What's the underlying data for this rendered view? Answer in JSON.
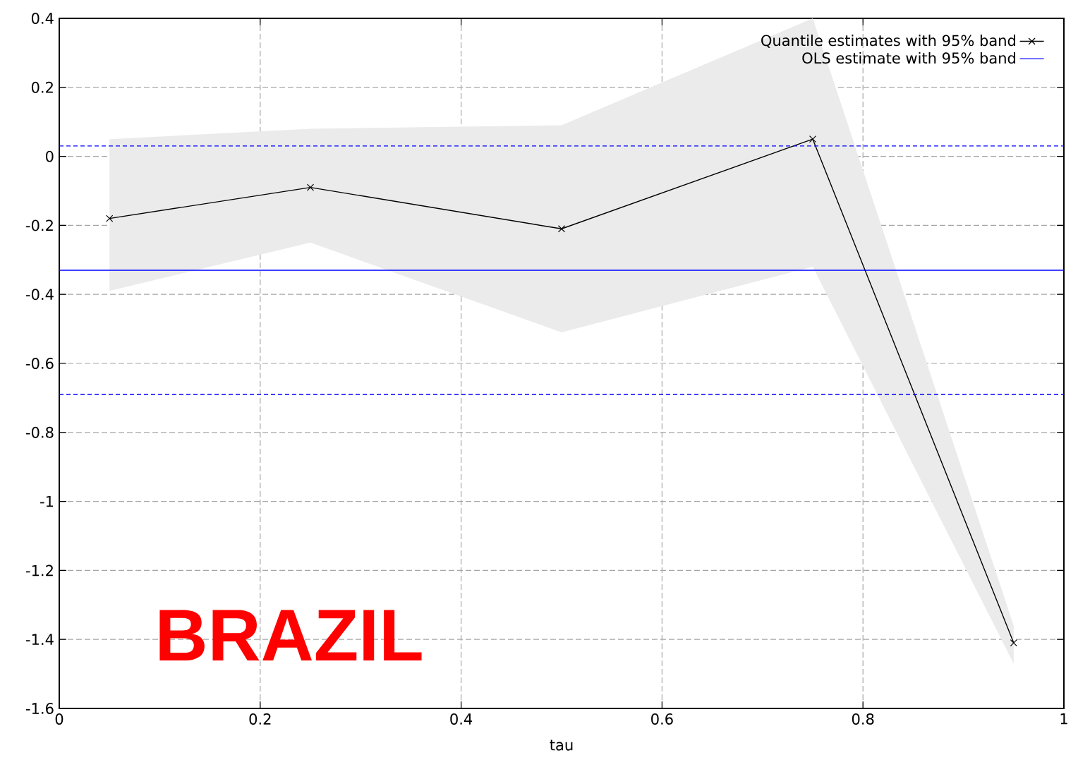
{
  "chart_data": {
    "type": "line",
    "xlabel": "tau",
    "annotations": [
      "BRAZIL"
    ],
    "series": [
      {
        "name": "Quantile estimates with 95% band",
        "color": "#000000",
        "x": [
          0.05,
          0.25,
          0.5,
          0.75,
          0.95
        ],
        "values": [
          -0.18,
          -0.09,
          -0.21,
          0.05,
          -1.41
        ],
        "lower": [
          -0.39,
          -0.25,
          -0.51,
          -0.32,
          -1.47
        ],
        "upper": [
          0.05,
          0.08,
          0.09,
          0.4,
          -1.36
        ],
        "marker": "cross"
      },
      {
        "name": "OLS estimate with 95% band",
        "color": "#0000ff",
        "x": [
          0,
          1
        ],
        "values": [
          -0.33,
          -0.33
        ],
        "marker": "none"
      }
    ],
    "ref_lines": [
      {
        "axis": "y",
        "value": 0.03,
        "color": "#0000ff",
        "line_style": "dashed"
      },
      {
        "axis": "y",
        "value": -0.69,
        "color": "#0000ff",
        "line_style": "dashed"
      }
    ],
    "xlim": [
      0,
      1
    ],
    "ylim": [
      -1.6,
      0.4
    ],
    "xticks": [
      0,
      0.2,
      0.4,
      0.6,
      0.8,
      1
    ],
    "yticks": [
      -1.6,
      -1.4,
      -1.2,
      -1,
      -0.8,
      -0.6,
      -0.4,
      -0.2,
      0,
      0.2,
      0.4
    ],
    "grid": true,
    "legend": "top right"
  }
}
